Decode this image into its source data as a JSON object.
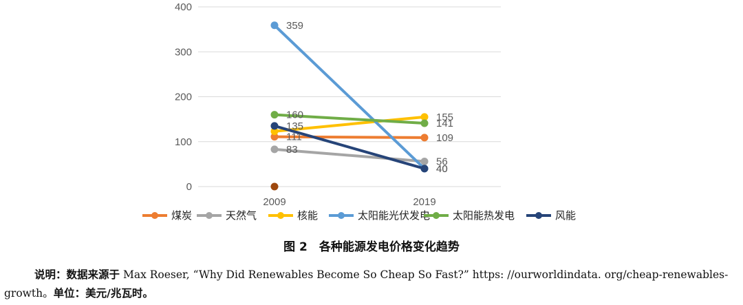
{
  "chart_data": {
    "type": "line",
    "categories": [
      "2009",
      "2019"
    ],
    "ylim": [
      0,
      400
    ],
    "yticks": [
      0,
      100,
      200,
      300,
      400
    ],
    "grid": true,
    "legend_position": "bottom",
    "series": [
      {
        "name": "煤炭",
        "color": "#ED7D31",
        "values": [
          111,
          109
        ],
        "labels": [
          "111",
          "109"
        ]
      },
      {
        "name": "天然气",
        "color": "#A5A5A5",
        "values": [
          83,
          56
        ],
        "labels": [
          "83",
          "56"
        ]
      },
      {
        "name": "核能",
        "color": "#FFC000",
        "values": [
          123,
          155
        ],
        "labels": [
          "",
          "155"
        ]
      },
      {
        "name": "太阳能光伏发电",
        "color": "#5B9BD5",
        "values": [
          359,
          40
        ],
        "labels": [
          "359",
          "40"
        ]
      },
      {
        "name": "太阳能热发电",
        "color": "#70AD47",
        "values": [
          160,
          141
        ],
        "labels": [
          "160",
          "141"
        ]
      },
      {
        "name": "风能",
        "color": "#264478",
        "values": [
          135,
          40
        ],
        "labels": [
          "135",
          "40"
        ]
      }
    ],
    "extra_points": [
      {
        "x": "2009",
        "y": 0,
        "color": "#9E480E"
      }
    ]
  },
  "caption": "图 2　各种能源发电价格变化趋势",
  "note": {
    "label": "说明：",
    "source_prefix": "数据来源于",
    "source_text": " Max Roeser,  “Why Did Renewables Become So Cheap So Fast?” https: //ourworldindata. org/cheap-renewables-growth。",
    "unit_label": "单位：",
    "unit_value": "美元/兆瓦时。"
  }
}
